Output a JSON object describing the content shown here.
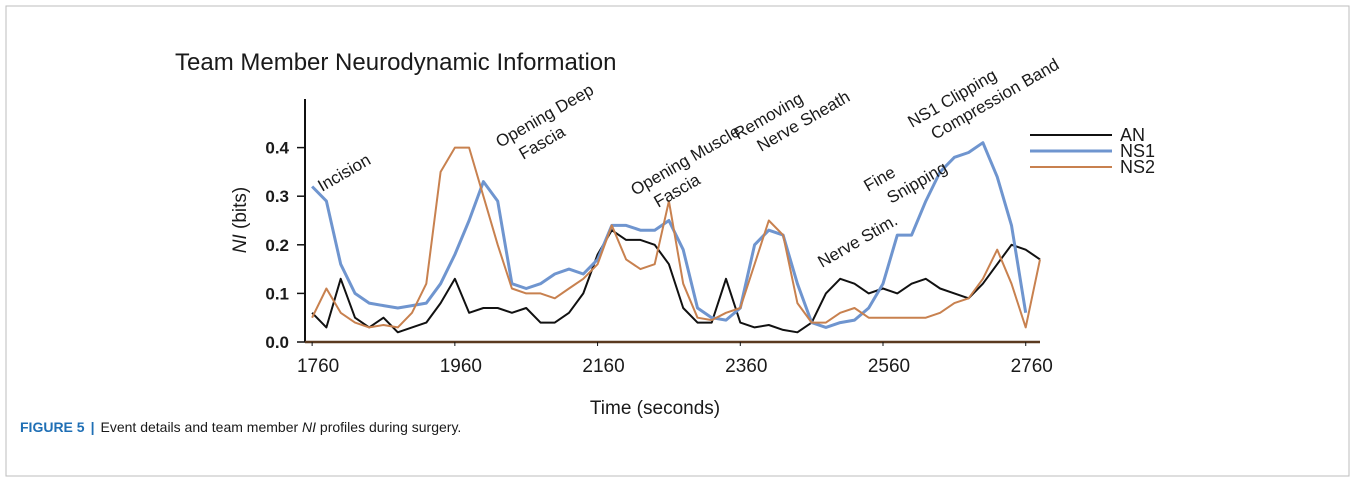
{
  "chart_data": {
    "type": "line",
    "title": "Team Member Neurodynamic Information",
    "x_label": "Time (seconds)",
    "y_label_parts": [
      "NI",
      " (bits)"
    ],
    "x": [
      1760,
      1780,
      1800,
      1820,
      1840,
      1860,
      1880,
      1900,
      1920,
      1940,
      1960,
      1980,
      2000,
      2020,
      2040,
      2060,
      2080,
      2100,
      2120,
      2140,
      2160,
      2180,
      2200,
      2220,
      2240,
      2260,
      2280,
      2300,
      2320,
      2340,
      2360,
      2380,
      2400,
      2420,
      2440,
      2460,
      2480,
      2500,
      2520,
      2540,
      2560,
      2580,
      2600,
      2620,
      2640,
      2660,
      2680,
      2700,
      2720,
      2740,
      2760,
      2780
    ],
    "series": [
      {
        "name": "AN",
        "color": "#111111",
        "values": [
          0.06,
          0.03,
          0.13,
          0.05,
          0.03,
          0.05,
          0.02,
          0.03,
          0.04,
          0.08,
          0.13,
          0.06,
          0.07,
          0.07,
          0.06,
          0.07,
          0.04,
          0.04,
          0.06,
          0.1,
          0.18,
          0.23,
          0.21,
          0.21,
          0.2,
          0.16,
          0.07,
          0.04,
          0.04,
          0.13,
          0.04,
          0.03,
          0.035,
          0.025,
          0.02,
          0.04,
          0.1,
          0.13,
          0.12,
          0.1,
          0.11,
          0.1,
          0.12,
          0.13,
          0.11,
          0.1,
          0.09,
          0.12,
          0.16,
          0.2,
          0.19,
          0.17
        ]
      },
      {
        "name": "NS1",
        "color": "#6f95cf",
        "values": [
          0.32,
          0.29,
          0.16,
          0.1,
          0.08,
          0.075,
          0.07,
          0.075,
          0.08,
          0.12,
          0.18,
          0.25,
          0.33,
          0.29,
          0.12,
          0.11,
          0.12,
          0.14,
          0.15,
          0.14,
          0.17,
          0.24,
          0.24,
          0.23,
          0.23,
          0.25,
          0.19,
          0.07,
          0.05,
          0.045,
          0.07,
          0.2,
          0.23,
          0.22,
          0.12,
          0.04,
          0.03,
          0.04,
          0.045,
          0.07,
          0.12,
          0.22,
          0.22,
          0.29,
          0.35,
          0.38,
          0.39,
          0.41,
          0.34,
          0.24,
          0.06,
          null
        ]
      },
      {
        "name": "NS2",
        "color": "#c8814f",
        "values": [
          0.05,
          0.11,
          0.06,
          0.04,
          0.03,
          0.035,
          0.03,
          0.06,
          0.12,
          0.35,
          0.4,
          0.4,
          0.3,
          0.2,
          0.11,
          0.1,
          0.1,
          0.09,
          0.11,
          0.13,
          0.16,
          0.24,
          0.17,
          0.15,
          0.16,
          0.29,
          0.12,
          0.05,
          0.045,
          0.06,
          0.07,
          0.16,
          0.25,
          0.22,
          0.08,
          0.04,
          0.04,
          0.06,
          0.07,
          0.05,
          0.05,
          0.05,
          0.05,
          0.05,
          0.06,
          0.08,
          0.09,
          0.13,
          0.19,
          0.12,
          0.03,
          0.17
        ]
      }
    ],
    "xlim": [
      1750,
      2780
    ],
    "xticks": [
      1760,
      1960,
      2160,
      2360,
      2560,
      2760
    ],
    "ylim": [
      0,
      0.5
    ],
    "yticks": [
      {
        "value": 0,
        "label": "0.0"
      },
      0.1,
      0.2,
      0.3,
      0.4
    ],
    "annotations": [
      {
        "lines": [
          "Incision"
        ]
      },
      {
        "lines": [
          "Opening Deep",
          "Fascia"
        ]
      },
      {
        "lines": [
          "Opening Muscle",
          "Fascia"
        ]
      },
      {
        "lines": [
          "Removing",
          "Nerve Sheath"
        ]
      },
      {
        "lines": [
          "Nerve Stim."
        ]
      },
      {
        "lines": [
          "Fine",
          "Snipping"
        ]
      },
      {
        "lines": [
          "NS1 Clipping",
          "Compression Band"
        ]
      }
    ]
  },
  "caption_parts": [
    "FIGURE 5",
    "|",
    "Event details and team member ",
    "NI",
    " profiles during surgery."
  ]
}
